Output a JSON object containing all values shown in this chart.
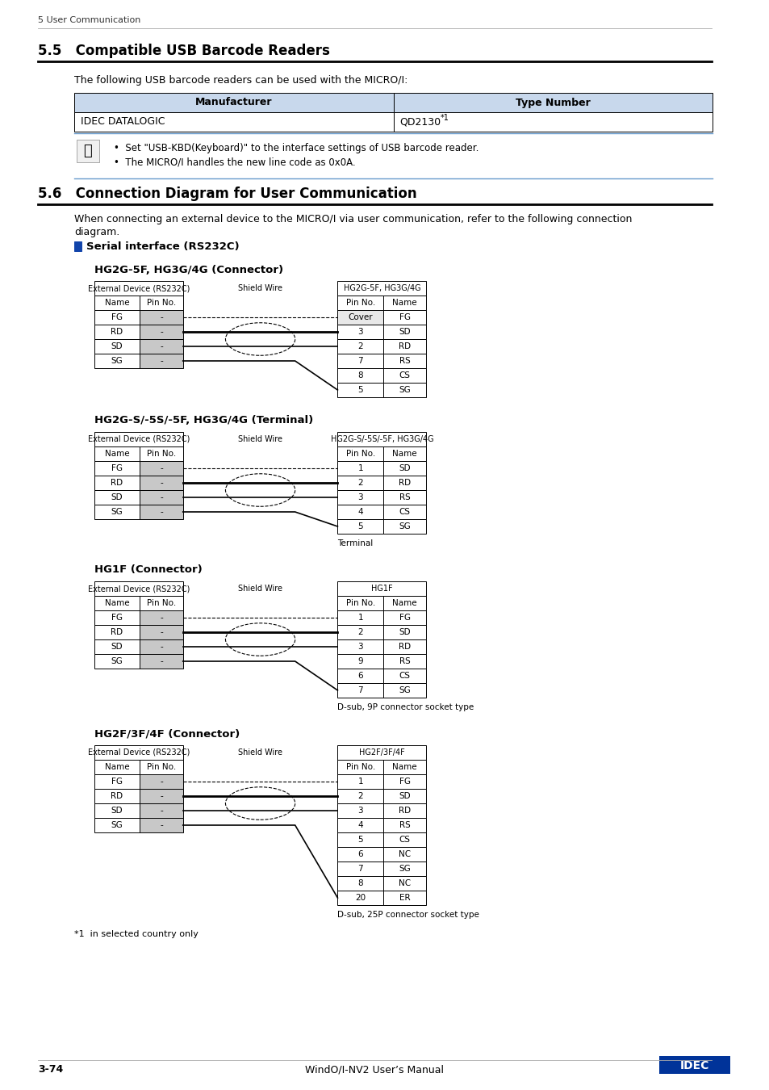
{
  "page_header": "5 User Communication",
  "section_55_title": "5.5   Compatible USB Barcode Readers",
  "section_55_body": "The following USB barcode readers can be used with the MICRO/I:",
  "table_55_headers": [
    "Manufacturer",
    "Type Number"
  ],
  "table_55_row": [
    "IDEC DATALOGIC",
    "QD2130"
  ],
  "table_55_row_super": "*1",
  "note_bullets": [
    "Set \"USB-KBD(Keyboard)\" to the interface settings of USB barcode reader.",
    "The MICRO/I handles the new line code as 0x0A."
  ],
  "section_56_title": "5.6   Connection Diagram for User Communication",
  "section_56_body1": "When connecting an external device to the MICRO/I via user communication, refer to the following connection",
  "section_56_body2": "diagram.",
  "serial_label": "Serial interface (RS232C)",
  "diagram1_title": "HG2G-5F, HG3G/4G (Connector)",
  "diagram1_left_header": "External Device (RS232C)",
  "diagram1_left_cols": [
    "Name",
    "Pin No."
  ],
  "diagram1_left_rows": [
    [
      "FG",
      "-"
    ],
    [
      "RD",
      "-"
    ],
    [
      "SD",
      "-"
    ],
    [
      "SG",
      "-"
    ]
  ],
  "diagram1_shield": "Shield Wire",
  "diagram1_right_header": "HG2G-5F, HG3G/4G",
  "diagram1_right_cols": [
    "Pin No.",
    "Name"
  ],
  "diagram1_right_rows": [
    [
      "Cover",
      "FG"
    ],
    [
      "3",
      "SD"
    ],
    [
      "2",
      "RD"
    ],
    [
      "7",
      "RS"
    ],
    [
      "8",
      "CS"
    ],
    [
      "5",
      "SG"
    ]
  ],
  "diagram1_note": null,
  "diagram2_title": "HG2G-S/-5S/-5F, HG3G/4G (Terminal)",
  "diagram2_left_header": "External Device (RS232C)",
  "diagram2_left_cols": [
    "Name",
    "Pin No."
  ],
  "diagram2_left_rows": [
    [
      "FG",
      "-"
    ],
    [
      "RD",
      "-"
    ],
    [
      "SD",
      "-"
    ],
    [
      "SG",
      "-"
    ]
  ],
  "diagram2_shield": "Shield Wire",
  "diagram2_right_header": "HG2G-S/-5S/-5F, HG3G/4G",
  "diagram2_right_cols": [
    "Pin No.",
    "Name"
  ],
  "diagram2_right_rows": [
    [
      "1",
      "SD"
    ],
    [
      "2",
      "RD"
    ],
    [
      "3",
      "RS"
    ],
    [
      "4",
      "CS"
    ],
    [
      "5",
      "SG"
    ]
  ],
  "diagram2_note": "Terminal",
  "diagram3_title": "HG1F (Connector)",
  "diagram3_left_header": "External Device (RS232C)",
  "diagram3_left_cols": [
    "Name",
    "Pin No."
  ],
  "diagram3_left_rows": [
    [
      "FG",
      "-"
    ],
    [
      "RD",
      "-"
    ],
    [
      "SD",
      "-"
    ],
    [
      "SG",
      "-"
    ]
  ],
  "diagram3_shield": "Shield Wire",
  "diagram3_right_header": "HG1F",
  "diagram3_right_cols": [
    "Pin No.",
    "Name"
  ],
  "diagram3_right_rows": [
    [
      "1",
      "FG"
    ],
    [
      "2",
      "SD"
    ],
    [
      "3",
      "RD"
    ],
    [
      "9",
      "RS"
    ],
    [
      "6",
      "CS"
    ],
    [
      "7",
      "SG"
    ]
  ],
  "diagram3_note": "D-sub, 9P connector socket type",
  "diagram4_title": "HG2F/3F/4F (Connector)",
  "diagram4_left_header": "External Device (RS232C)",
  "diagram4_left_cols": [
    "Name",
    "Pin No."
  ],
  "diagram4_left_rows": [
    [
      "FG",
      "-"
    ],
    [
      "RD",
      "-"
    ],
    [
      "SD",
      "-"
    ],
    [
      "SG",
      "-"
    ]
  ],
  "diagram4_shield": "Shield Wire",
  "diagram4_right_header": "HG2F/3F/4F",
  "diagram4_right_cols": [
    "Pin No.",
    "Name"
  ],
  "diagram4_right_rows": [
    [
      "1",
      "FG"
    ],
    [
      "2",
      "SD"
    ],
    [
      "3",
      "RD"
    ],
    [
      "4",
      "RS"
    ],
    [
      "5",
      "CS"
    ],
    [
      "6",
      "NC"
    ],
    [
      "7",
      "SG"
    ],
    [
      "8",
      "NC"
    ],
    [
      "20",
      "ER"
    ]
  ],
  "diagram4_note": "D-sub, 25P connector socket type",
  "footnote": "*1  in selected country only",
  "footer_left": "3-74",
  "footer_center": "WindO/I-NV2 User’s Manual",
  "footer_right": "IDEC",
  "bg_color": "#ffffff",
  "header_bg": "#c8d8ec",
  "gray_cell": "#c8c8c8",
  "light_gray_row": "#e8e8e8",
  "note_border": "#6699cc",
  "idec_blue": "#003399"
}
